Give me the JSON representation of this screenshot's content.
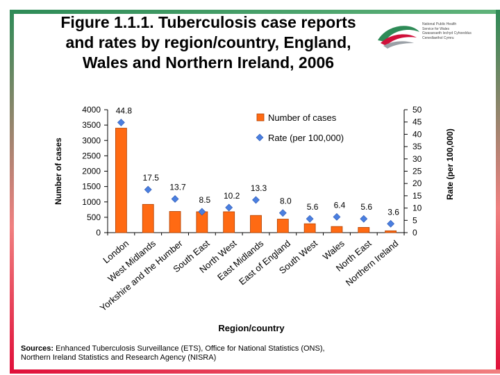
{
  "slide": {
    "title_line1": "Figure 1.1.1. Tuberculosis case reports",
    "title_line2": "and rates by region/country, England,",
    "title_line3": "Wales and Northern Ireland, 2006",
    "logo": {
      "line1": "National Public Health",
      "line2": "Service for Wales",
      "line3": "Gwasanaeth Iechyd Cyhoeddus",
      "line4": "Cenedlaethol Cymru"
    },
    "sources_label": "Sources:",
    "sources_text": "Enhanced Tuberculosis Surveillance (ETS), Office for National Statistics (ONS),",
    "sources_text2": "Northern Ireland Statistics and Research Agency (NISRA)"
  },
  "colors": {
    "bar_fill": "#ff6a13",
    "bar_stroke": "#b04000",
    "marker": "#4a7fe0"
  },
  "chart_data": {
    "type": "bar",
    "title": "Figure 1.1.1. Tuberculosis case reports and rates by region/country, England, Wales and Northern Ireland, 2006",
    "xlabel": "Region/country",
    "ylabel": "Number of cases",
    "y2label": "Rate (per 100,000)",
    "ylim": [
      0,
      4000
    ],
    "y2lim": [
      0,
      50
    ],
    "yticks": [
      "4000",
      "3500",
      "3000",
      "2500",
      "2000",
      "1500",
      "1000",
      "500",
      "0"
    ],
    "y2ticks": [
      "50",
      "45",
      "40",
      "35",
      "30",
      "25",
      "20",
      "15",
      "10",
      "5",
      "0"
    ],
    "categories": [
      "London",
      "West Midlands",
      "Yorkshire and the Humber",
      "South East",
      "North West",
      "East Midlands",
      "East of England",
      "South West",
      "Wales",
      "North East",
      "Northern Ireland"
    ],
    "series": [
      {
        "name": "Number of cases",
        "type": "bar",
        "axis": "left",
        "values": [
          3400,
          920,
          690,
          680,
          680,
          560,
          440,
          290,
          200,
          170,
          60
        ]
      },
      {
        "name": "Rate (per 100,000)",
        "type": "scatter",
        "axis": "right",
        "values": [
          44.8,
          17.5,
          13.7,
          8.5,
          10.2,
          13.3,
          8.0,
          5.6,
          6.4,
          5.6,
          3.6
        ],
        "labels": [
          "44.8",
          "17.5",
          "13.7",
          "8.5",
          "10.2",
          "13.3",
          "8.0",
          "5.6",
          "6.4",
          "5.6",
          "3.6"
        ]
      }
    ],
    "legend": {
      "position": "top-right",
      "bar_label": "Number of cases",
      "marker_label": "Rate (per 100,000)"
    }
  }
}
